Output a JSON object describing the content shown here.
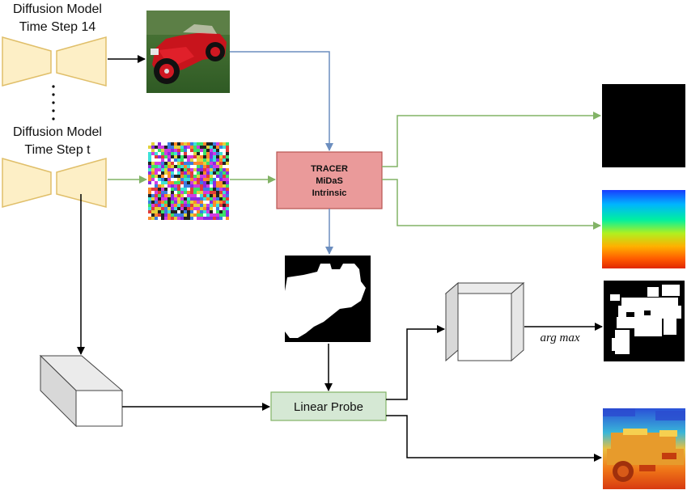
{
  "labels": {
    "model_top_line1": "Diffusion Model",
    "model_top_line2": "Time Step 14",
    "model_bottom_line1": "Diffusion Model",
    "model_bottom_line2": "Time Step t"
  },
  "tracer": {
    "line1": "TRACER",
    "line2": "MiDaS",
    "line3": "Intrinsic"
  },
  "probe": {
    "label": "Linear Probe"
  },
  "argmax": {
    "label": "arg max"
  },
  "colors": {
    "encoder_fill": "#fdefc6",
    "encoder_stroke": "#e0bf6a",
    "tracer_fill": "#ea9a9a",
    "tracer_stroke": "#b85450",
    "probe_fill": "#d5e8d4",
    "probe_stroke": "#82b366",
    "arrow_blue": "#6c8ebf",
    "arrow_green": "#82b366",
    "arrow_black": "#000000"
  },
  "icons": {
    "generated_image": "red-vintage-car-image",
    "noisy_latent": "noise-image",
    "saliency_output": "black-saliency-image",
    "depth_output": "depth-gradient-image",
    "mask_gt": "car-silhouette-mask-image",
    "mask_pred": "pixelated-car-mask-image",
    "depth_pred": "pixelated-depth-image"
  }
}
